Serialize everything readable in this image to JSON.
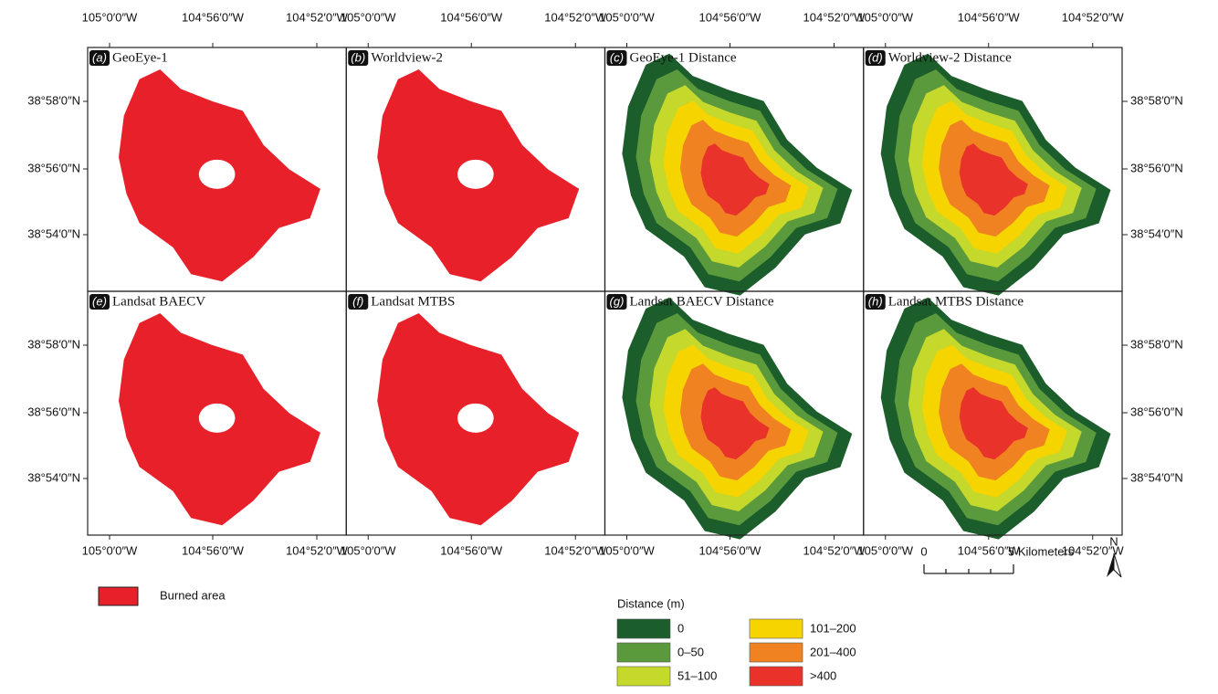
{
  "longitude_labels": [
    "105°0′0″W",
    "104°56′0″W",
    "104°52′0″W"
  ],
  "latitude_labels": [
    "38°58′0″N",
    "38°56′0″N",
    "38°54′0″N"
  ],
  "panels": [
    {
      "letter": "a",
      "title": "GeoEye-1"
    },
    {
      "letter": "b",
      "title": "Worldview-2"
    },
    {
      "letter": "c",
      "title": "GeoEye-1 Distance"
    },
    {
      "letter": "d",
      "title": "Worldview-2 Distance"
    },
    {
      "letter": "e",
      "title": "Landsat BAECV"
    },
    {
      "letter": "f",
      "title": "Landsat MTBS"
    },
    {
      "letter": "g",
      "title": "Landsat BAECV Distance"
    },
    {
      "letter": "h",
      "title": "Landsat MTBS Distance"
    }
  ],
  "legend": {
    "burned_area": {
      "label": "Burned area",
      "color": "#e8202a"
    },
    "distance_title": "Distance (m)",
    "classes": [
      {
        "label": "0",
        "color": "#1b5e2b"
      },
      {
        "label": "0–50",
        "color": "#5b9a3c"
      },
      {
        "label": "51–100",
        "color": "#c5d82c"
      },
      {
        "label": "101–200",
        "color": "#f5d400"
      },
      {
        "label": "201–400",
        "color": "#f08222"
      },
      {
        "label": ">400",
        "color": "#e8322a"
      }
    ]
  },
  "scale_bar": {
    "start": "0",
    "end": "5 Kilometers"
  },
  "north_arrow": "N"
}
